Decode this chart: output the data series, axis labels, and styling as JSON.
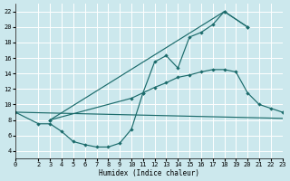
{
  "bg_color": "#cce8ed",
  "grid_color": "#ffffff",
  "line_color": "#1b6b6b",
  "xlabel": "Humidex (Indice chaleur)",
  "ylim": [
    3,
    23
  ],
  "xlim": [
    0,
    23
  ],
  "yticks": [
    4,
    6,
    8,
    10,
    12,
    14,
    16,
    18,
    20,
    22
  ],
  "xticks": [
    0,
    2,
    3,
    4,
    5,
    6,
    7,
    8,
    9,
    10,
    11,
    12,
    13,
    14,
    15,
    16,
    17,
    18,
    19,
    20,
    21,
    22,
    23
  ],
  "series": [
    {
      "x": [
        0,
        2,
        3,
        4,
        5,
        6,
        7,
        8,
        9,
        10,
        11,
        12,
        13,
        14,
        15,
        16,
        17,
        18,
        20
      ],
      "y": [
        9.0,
        7.5,
        7.5,
        6.5,
        5.2,
        4.8,
        4.5,
        4.5,
        5.0,
        6.8,
        11.5,
        15.5,
        16.3,
        14.7,
        18.7,
        19.3,
        20.3,
        22.0,
        20.0
      ],
      "marker": true
    },
    {
      "x": [
        0,
        23
      ],
      "y": [
        9.0,
        8.2
      ],
      "marker": false
    },
    {
      "x": [
        3,
        18,
        20
      ],
      "y": [
        8.0,
        22.0,
        20.0
      ],
      "marker": true
    },
    {
      "x": [
        3,
        10,
        11,
        12,
        13,
        14,
        15,
        16,
        17,
        18,
        19,
        20,
        21,
        22,
        23
      ],
      "y": [
        8.0,
        10.8,
        11.5,
        12.2,
        12.8,
        13.5,
        13.8,
        14.2,
        14.5,
        14.5,
        14.2,
        11.5,
        10.0,
        9.5,
        9.0
      ],
      "marker": true
    }
  ]
}
